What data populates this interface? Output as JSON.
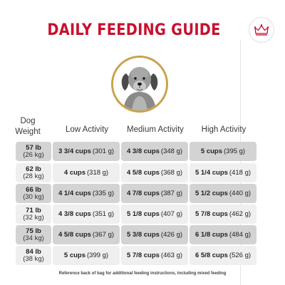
{
  "title": "DAILY FEEDING GUIDE",
  "headers": {
    "dog_weight_line1": "Dog",
    "dog_weight_line2": "Weight",
    "low": "Low Activity",
    "medium": "Medium Activity",
    "high": "High Activity"
  },
  "rows": [
    {
      "lb": "57 lb",
      "kg": "(26 kg)",
      "low_cups": "3 3/4 cups",
      "low_g": "(301 g)",
      "med_cups": "4 3/8 cups",
      "med_g": "(348 g)",
      "high_cups": "5 cups",
      "high_g": "(395 g)"
    },
    {
      "lb": "62 lb",
      "kg": "(28 kg)",
      "low_cups": "4 cups",
      "low_g": "(318 g)",
      "med_cups": "4 5/8 cups",
      "med_g": "(368 g)",
      "high_cups": "5 1/4 cups",
      "high_g": "(418 g)"
    },
    {
      "lb": "66 lb",
      "kg": "(30 kg)",
      "low_cups": "4 1/4 cups",
      "low_g": "(335 g)",
      "med_cups": "4 7/8 cups",
      "med_g": "(387 g)",
      "high_cups": "5 1/2 cups",
      "high_g": "(440 g)"
    },
    {
      "lb": "71 lb",
      "kg": "(32 kg)",
      "low_cups": "4 3/8 cups",
      "low_g": "(351 g)",
      "med_cups": "5 1/8 cups",
      "med_g": "(407 g)",
      "high_cups": "5 7/8 cups",
      "high_g": "(462 g)"
    },
    {
      "lb": "75 lb",
      "kg": "(34 kg)",
      "low_cups": "4 5/8 cups",
      "low_g": "(367 g)",
      "med_cups": "5 3/8 cups",
      "med_g": "(426 g)",
      "high_cups": "6 1/8 cups",
      "high_g": "(484 g)"
    },
    {
      "lb": "84 lb",
      "kg": "(38 kg)",
      "low_cups": "5 cups",
      "low_g": "(399 g)",
      "med_cups": "5 7/8 cups",
      "med_g": "(463 g)",
      "high_cups": "6 5/8 cups",
      "high_g": "(526 g)"
    }
  ],
  "footnote": "Reference back of bag for additional feeding instructions, including mixed feeding",
  "colors": {
    "title_red": "#c8102e",
    "ring_gold": "#c9a24a",
    "row_dark": "#d3d3d3",
    "row_light": "#efefef"
  },
  "icons": {
    "brand": "crown-icon",
    "photo": "dog-portrait"
  }
}
